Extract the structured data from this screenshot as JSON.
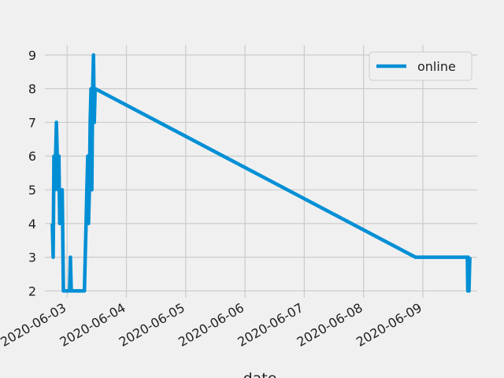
{
  "chart_data": {
    "type": "line",
    "title": "",
    "xlabel": "date",
    "ylabel": "",
    "grid": true,
    "legend_position": "top-right",
    "x_ticks": [
      "2020-06-03",
      "2020-06-04",
      "2020-06-05",
      "2020-06-06",
      "2020-06-07",
      "2020-06-08",
      "2020-06-09"
    ],
    "y_ticks": [
      2,
      3,
      4,
      5,
      6,
      7,
      8,
      9
    ],
    "xlim": [
      "2020-06-02 15:00",
      "2020-06-09 22:00"
    ],
    "ylim": [
      1.8,
      9.3
    ],
    "series": [
      {
        "name": "online",
        "color": "#008fd5",
        "points": [
          [
            "2020-06-02 18:00",
            4
          ],
          [
            "2020-06-02 18:20",
            3
          ],
          [
            "2020-06-02 18:40",
            6
          ],
          [
            "2020-06-02 19:00",
            5
          ],
          [
            "2020-06-02 19:20",
            6
          ],
          [
            "2020-06-02 19:40",
            7
          ],
          [
            "2020-06-02 20:00",
            6
          ],
          [
            "2020-06-02 20:20",
            5
          ],
          [
            "2020-06-02 20:40",
            6
          ],
          [
            "2020-06-02 21:00",
            4
          ],
          [
            "2020-06-02 21:20",
            5
          ],
          [
            "2020-06-02 21:40",
            4
          ],
          [
            "2020-06-02 22:00",
            5
          ],
          [
            "2020-06-02 22:20",
            3
          ],
          [
            "2020-06-02 22:30",
            2
          ],
          [
            "2020-06-03 01:00",
            2
          ],
          [
            "2020-06-03 01:20",
            3
          ],
          [
            "2020-06-03 01:40",
            2
          ],
          [
            "2020-06-03 07:00",
            2
          ],
          [
            "2020-06-03 07:20",
            3
          ],
          [
            "2020-06-03 07:40",
            4
          ],
          [
            "2020-06-03 08:00",
            5
          ],
          [
            "2020-06-03 08:20",
            6
          ],
          [
            "2020-06-03 08:40",
            4
          ],
          [
            "2020-06-03 09:00",
            5
          ],
          [
            "2020-06-03 09:20",
            7
          ],
          [
            "2020-06-03 09:40",
            8
          ],
          [
            "2020-06-03 10:00",
            5
          ],
          [
            "2020-06-03 10:20",
            8
          ],
          [
            "2020-06-03 10:40",
            9
          ],
          [
            "2020-06-03 11:00",
            7
          ],
          [
            "2020-06-03 11:20",
            8
          ],
          [
            "2020-06-08 21:00",
            3
          ],
          [
            "2020-06-09 18:00",
            3
          ],
          [
            "2020-06-09 18:10",
            2
          ],
          [
            "2020-06-09 18:20",
            3
          ],
          [
            "2020-06-09 18:40",
            2
          ],
          [
            "2020-06-09 19:00",
            3
          ]
        ]
      }
    ]
  }
}
